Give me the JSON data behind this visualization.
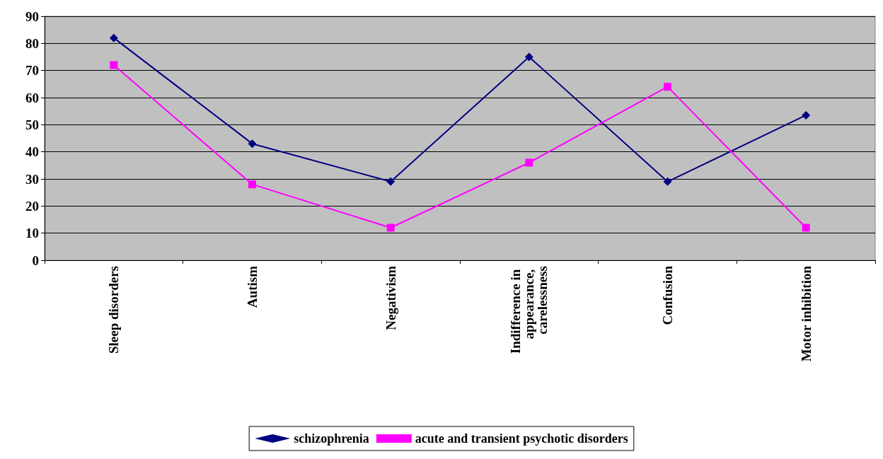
{
  "chart_data": {
    "type": "line",
    "categories": [
      "Sleep disorders",
      "Autism",
      "Negativism",
      "Indifference in appearance, carelessness",
      "Confusion",
      "Motor inhibition"
    ],
    "series": [
      {
        "name": "schizophrenia",
        "color": "#000080",
        "marker": "diamond",
        "values": [
          82,
          43,
          29,
          75,
          29,
          53.5
        ]
      },
      {
        "name": "acute and transient psychotic disorders",
        "color": "#ff00ff",
        "marker": "square",
        "values": [
          72,
          28,
          12,
          36,
          64,
          12
        ]
      }
    ],
    "ylim": [
      0,
      90
    ],
    "yticks": [
      0,
      10,
      20,
      30,
      40,
      50,
      60,
      70,
      80,
      90
    ],
    "grid": "y",
    "legend": "bottom"
  }
}
